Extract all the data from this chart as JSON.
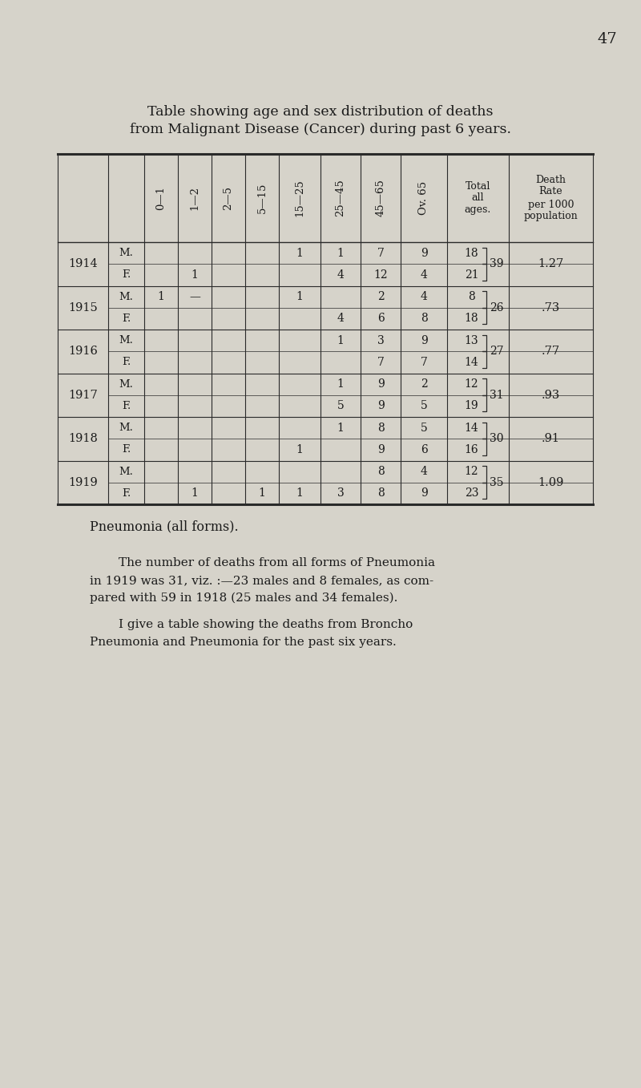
{
  "page_number": "47",
  "title_line1": "Table showing age and sex distribution of deaths",
  "title_line2": "from Malignant Disease (Cancer) during past 6 years.",
  "years": [
    "1914",
    "1915",
    "1916",
    "1917",
    "1918",
    "1919"
  ],
  "rows": [
    {
      "year": "1914",
      "sex": "M.",
      "0_1": "",
      "1_2": "",
      "2_5": "",
      "5_15": "",
      "15_25": "1",
      "25_45": "1",
      "45_65": "7",
      "ov65": "9",
      "total": "18",
      "total_combined": "39",
      "rate": "1.27"
    },
    {
      "year": "1914",
      "sex": "F.",
      "0_1": "",
      "1_2": "1",
      "2_5": "",
      "5_15": "",
      "15_25": "",
      "25_45": "4",
      "45_65": "12",
      "ov65": "4",
      "total": "21",
      "total_combined": "",
      "rate": ""
    },
    {
      "year": "1915",
      "sex": "M.",
      "0_1": "1",
      "1_2": "—",
      "2_5": "",
      "5_15": "",
      "15_25": "1",
      "25_45": "",
      "45_65": "2",
      "ov65": "4",
      "total": "8",
      "total_combined": "26",
      "rate": ".73"
    },
    {
      "year": "1915",
      "sex": "F.",
      "0_1": "",
      "1_2": "",
      "2_5": "",
      "5_15": "",
      "15_25": "",
      "25_45": "4",
      "45_65": "6",
      "ov65": "8",
      "total": "18",
      "total_combined": "",
      "rate": ""
    },
    {
      "year": "1916",
      "sex": "M.",
      "0_1": "",
      "1_2": "",
      "2_5": "",
      "5_15": "",
      "15_25": "",
      "25_45": "1",
      "45_65": "3",
      "ov65": "9",
      "total": "13",
      "total_combined": "27",
      "rate": ".77"
    },
    {
      "year": "1916",
      "sex": "F.",
      "0_1": "",
      "1_2": "",
      "2_5": "",
      "5_15": "",
      "15_25": "",
      "25_45": "",
      "45_65": "7",
      "ov65": "7",
      "total": "14",
      "total_combined": "",
      "rate": ""
    },
    {
      "year": "1917",
      "sex": "M.",
      "0_1": "",
      "1_2": "",
      "2_5": "",
      "5_15": "",
      "15_25": "",
      "25_45": "1",
      "45_65": "9",
      "ov65": "2",
      "total": "12",
      "total_combined": "31",
      "rate": ".93"
    },
    {
      "year": "1917",
      "sex": "F.",
      "0_1": "",
      "1_2": "",
      "2_5": "",
      "5_15": "",
      "15_25": "",
      "25_45": "5",
      "45_65": "9",
      "ov65": "5",
      "total": "19",
      "total_combined": "",
      "rate": ""
    },
    {
      "year": "1918",
      "sex": "M.",
      "0_1": "",
      "1_2": "",
      "2_5": "",
      "5_15": "",
      "15_25": "",
      "25_45": "1",
      "45_65": "8",
      "ov65": "5",
      "total": "14",
      "total_combined": "30",
      "rate": ".91"
    },
    {
      "year": "1918",
      "sex": "F.",
      "0_1": "",
      "1_2": "",
      "2_5": "",
      "5_15": "",
      "15_25": "1",
      "25_45": "",
      "45_65": "9",
      "ov65": "6",
      "total": "16",
      "total_combined": "",
      "rate": ""
    },
    {
      "year": "1919",
      "sex": "M.",
      "0_1": "",
      "1_2": "",
      "2_5": "",
      "5_15": "",
      "15_25": "",
      "25_45": "",
      "45_65": "8",
      "ov65": "4",
      "total": "12",
      "total_combined": "35",
      "rate": "1.09"
    },
    {
      "year": "1919",
      "sex": "F.",
      "0_1": "",
      "1_2": "1",
      "2_5": "",
      "5_15": "1",
      "15_25": "1",
      "25_45": "3",
      "45_65": "8",
      "ov65": "9",
      "total": "23",
      "total_combined": "",
      "rate": ""
    }
  ],
  "pneumonia_heading": "Pneumonia (all forms).",
  "pneumonia_para1": "The number of deaths from all forms of Pneumonia",
  "pneumonia_para2": "in 1919 was 31, viz. :—23 males and 8 females, as com-",
  "pneumonia_para3": "pared with 59 in 1918 (25 males and 34 females).",
  "broncho_para1": "I give a table showing the deaths from Broncho",
  "broncho_para2": "Pneumonia and Pneumonia for the past six years.",
  "bg_color": "#d6d3ca",
  "text_color": "#1a1a1a",
  "line_color": "#2a2a2a"
}
